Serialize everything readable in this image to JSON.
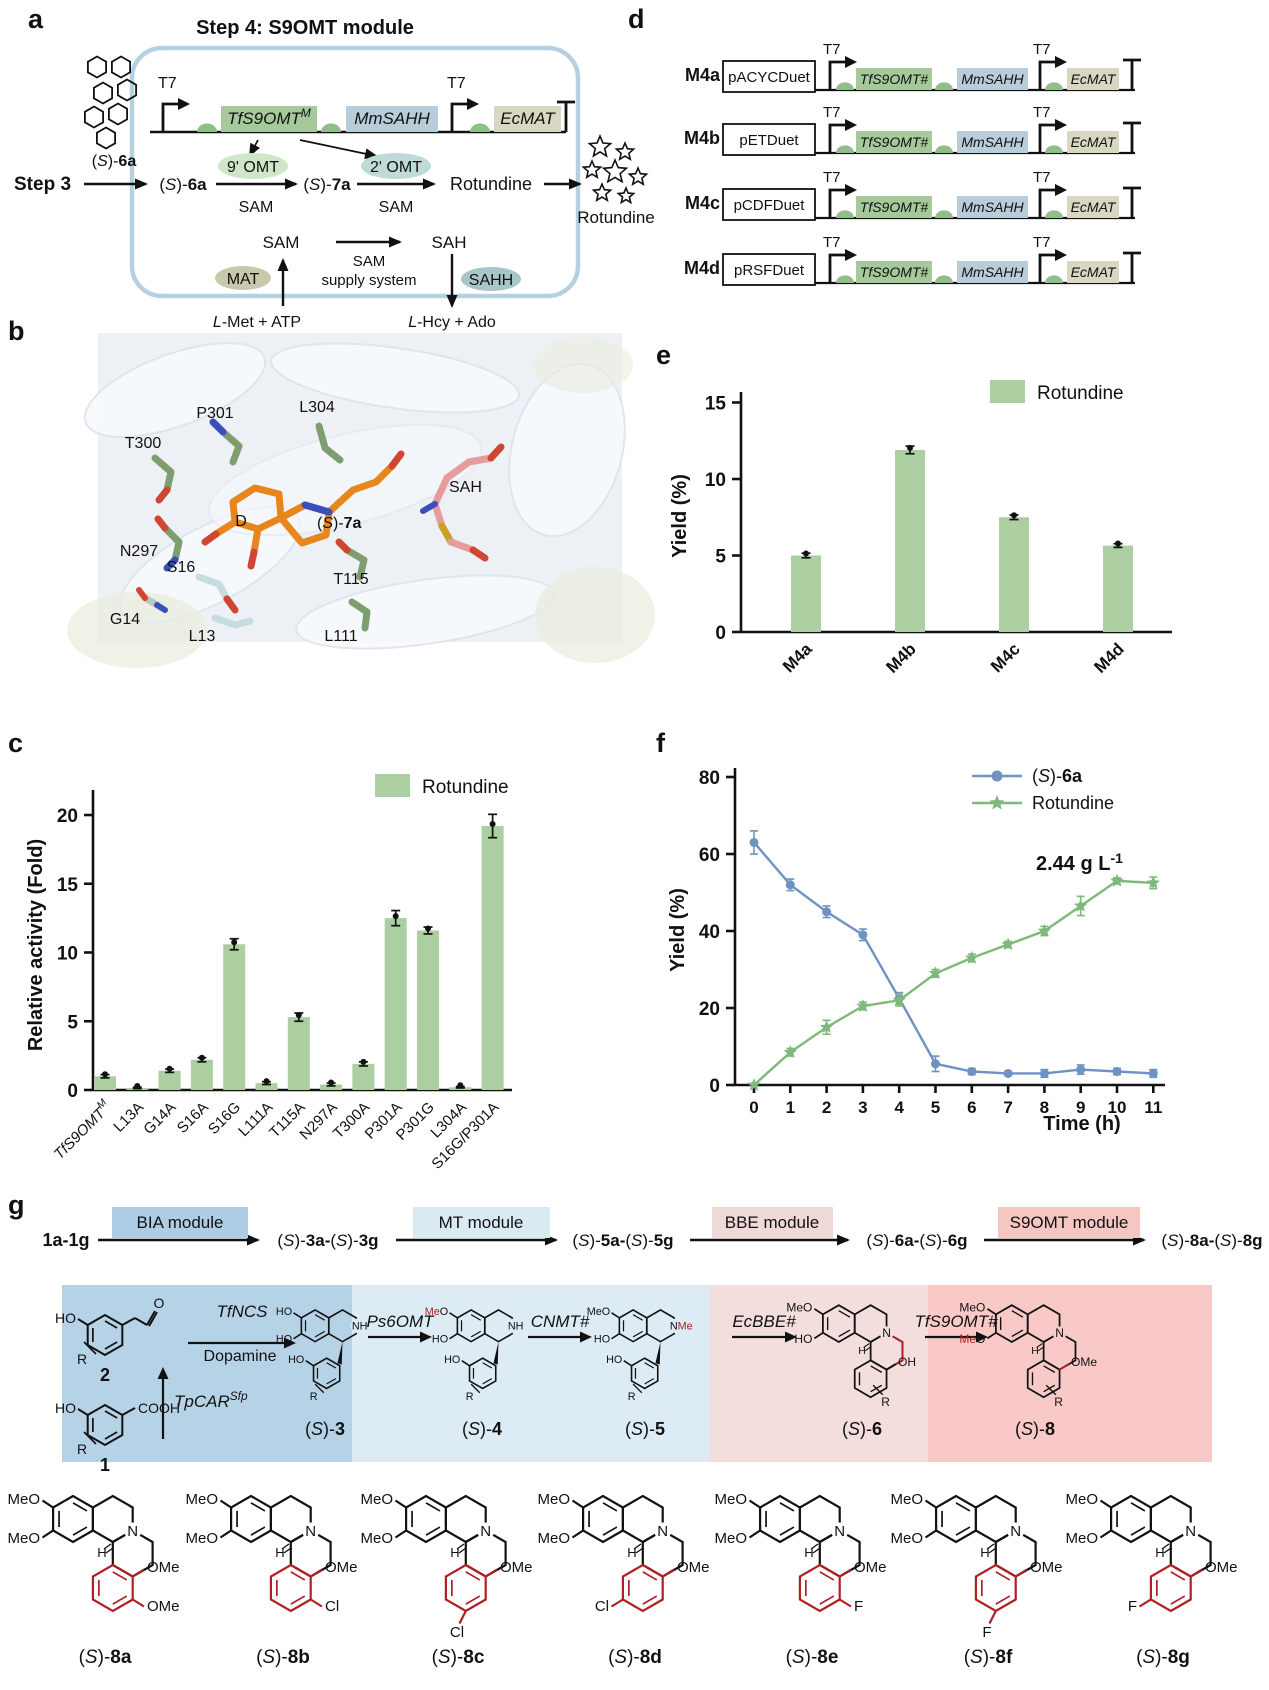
{
  "figure": {
    "panel_labels": {
      "a": "a",
      "b": "b",
      "c": "c",
      "d": "d",
      "e": "e",
      "f": "f",
      "g": "g"
    }
  },
  "colors": {
    "module_border": "#b5d1e1",
    "gene_green": "#a5c99b",
    "gene_blue": "#b9ccd9",
    "gene_tan": "#d8d7c1",
    "rbs_green": "#8fbe89",
    "ellipse_9omt": "#cfe6c8",
    "ellipse_2omt": "#bedbd8",
    "ellipse_mat": "#c8c8ac",
    "ellipse_sahh": "#a8c6c9",
    "bar_fill": "#abcfa0",
    "line_blue": "#6e92c2",
    "line_green": "#7db97b",
    "enzyme_orange": "#d2622a",
    "substituent_red": "#b01f24",
    "flow_bia": "#aecde5",
    "flow_mt": "#d9eaf3",
    "flow_bbe": "#efd9d7",
    "flow_s9omt": "#f6c6c3",
    "band_bia": "#b6d2e7",
    "band_mt": "#dcebf4",
    "band_bbe": "#f3dedd",
    "band_s9omt": "#f9c9c7",
    "protein_bg": "#edf1f6",
    "ligand_orange": "#e8861e",
    "sah_pink": "#e69c9c",
    "stick_green": "#7f9e70",
    "stick_cyan": "#c4dde0"
  },
  "panel_a": {
    "title": "Step 4: S9OMT module",
    "t7": "T7",
    "gene1": "TfS9OMT^M",
    "gene2": "MmSAHH",
    "gene3": "EcMAT",
    "step3": "Step 3",
    "substrate": "(S)-6a",
    "enzyme1": "9' OMT",
    "enzyme2": "2' OMT",
    "sam1": "SAM",
    "sam2": "SAM",
    "intermediate": "(S)-7a",
    "product": "Rotundine",
    "product_out": "Rotundine",
    "sam3": "SAM",
    "sah": "SAH",
    "supply_line1": "SAM",
    "supply_line2": "supply system",
    "mat": "MAT",
    "sahh": "SAHH",
    "lmet": "L-Met + ATP",
    "lhcy": "L-Hcy + Ado"
  },
  "panel_b": {
    "p301": "P301",
    "l304": "L304",
    "t300": "T300",
    "n297": "N297",
    "s16": "S16",
    "g14": "G14",
    "l13": "L13",
    "t115": "T115",
    "l111": "L111",
    "sah": "SAH",
    "site_label": "D",
    "ligand": "(S)-7a"
  },
  "panel_d": {
    "t7": "T7",
    "gene1": "TfS9OMT#",
    "gene2": "MmSAHH",
    "gene3": "EcMAT",
    "rows": [
      {
        "name": "M4a",
        "plasmid": "pACYCDuet"
      },
      {
        "name": "M4b",
        "plasmid": "pETDuet"
      },
      {
        "name": "M4c",
        "plasmid": "pCDFDuet"
      },
      {
        "name": "M4d",
        "plasmid": "pRSFDuet"
      }
    ]
  },
  "chart_data": [
    {
      "id": "panel_c",
      "type": "bar",
      "ylabel": "Relative activity (Fold)",
      "legend": "Rotundine",
      "ylim": [
        0,
        22
      ],
      "yticks": [
        0,
        5,
        10,
        15,
        20
      ],
      "categories": [
        "TfS9OMT^M",
        "L13A",
        "G14A",
        "S16A",
        "S16G",
        "L111A",
        "T115A",
        "N297A",
        "T300A",
        "P301A",
        "P301G",
        "L304A",
        "S16G/P301A"
      ],
      "values": [
        1.0,
        0.15,
        1.4,
        2.2,
        10.6,
        0.5,
        5.3,
        0.4,
        1.9,
        12.5,
        11.6,
        0.2,
        19.2
      ],
      "errors": [
        0.12,
        0.05,
        0.12,
        0.15,
        0.4,
        0.1,
        0.3,
        0.1,
        0.15,
        0.55,
        0.25,
        0.05,
        0.85
      ]
    },
    {
      "id": "panel_e",
      "type": "bar",
      "ylabel": "Yield (%)",
      "legend": "Rotundine",
      "ylim": [
        0,
        15
      ],
      "yticks": [
        0,
        5,
        10,
        15
      ],
      "categories": [
        "M4a",
        "M4b",
        "M4c",
        "M4d"
      ],
      "values": [
        5.0,
        11.9,
        7.5,
        5.65
      ],
      "errors": [
        0.15,
        0.25,
        0.15,
        0.12
      ]
    },
    {
      "id": "panel_f",
      "type": "line",
      "ylabel": "Yield (%)",
      "xlabel": "Time (h)",
      "ylim": [
        0,
        80
      ],
      "yticks": [
        0,
        20,
        40,
        60,
        80
      ],
      "x": [
        0,
        1,
        2,
        3,
        4,
        5,
        6,
        7,
        8,
        9,
        10,
        11
      ],
      "annotation": "2.44 g L^-1",
      "series": [
        {
          "name": "(S)-6a",
          "marker": "circle",
          "color": "#6e92c2",
          "values": [
            63,
            52,
            45,
            39,
            22.5,
            5.5,
            3.5,
            3,
            3,
            4,
            3.5,
            3
          ],
          "errors": [
            3,
            1.5,
            1.5,
            1.5,
            1.5,
            2,
            0.8,
            0.5,
            1,
            1.2,
            0.8,
            1
          ]
        },
        {
          "name": "Rotundine",
          "marker": "star",
          "color": "#7db97b",
          "values": [
            0,
            8.5,
            15,
            20.5,
            22,
            29,
            33,
            36.5,
            40,
            46.5,
            53,
            52.5
          ],
          "errors": [
            0,
            1,
            1.8,
            1,
            1.5,
            1,
            1,
            0.8,
            1.2,
            2.5,
            0.8,
            1.5
          ]
        }
      ]
    }
  ],
  "panel_g": {
    "flow": {
      "start": "1a-1g",
      "steps": [
        {
          "module": "BIA module",
          "product": "(S)-3a-(S)-3g"
        },
        {
          "module": "MT module",
          "product": "(S)-5a-(S)-5g"
        },
        {
          "module": "BBE module",
          "product": "(S)-6a-(S)-6g"
        },
        {
          "module": "S9OMT module",
          "product": "(S)-8a-(S)-8g"
        }
      ]
    },
    "enzymes": {
      "tfncs": "TfNCS",
      "dopamine": "Dopamine",
      "tpcar": "TpCAR^Sfp",
      "ps6omt": "Ps6OMT",
      "cnmt": "CNMT#",
      "ecbbe": "EcBBE#",
      "tfs9omt": "TfS9OMT#"
    },
    "pathway_compounds": {
      "c2": {
        "name": "2",
        "ho": "HO",
        "r": "R",
        "o": "O"
      },
      "c1": {
        "name": "1",
        "ho": "HO",
        "r": "R",
        "cooh": "COOH"
      },
      "s3": {
        "name": "(S)-3",
        "a1": "HO",
        "a2": "HO",
        "amine": "NH",
        "e1": "HO",
        "r": "R"
      },
      "s4": {
        "name": "(S)-4",
        "a1": "MeO",
        "a1_red": "me",
        "a2": "HO",
        "amine": "NH",
        "e1": "HO",
        "r": "R"
      },
      "s5": {
        "name": "(S)-5",
        "a1": "MeO",
        "a2": "HO",
        "amine": "NMe",
        "amine_red": "me",
        "e1": "HO",
        "r": "R"
      },
      "s6": {
        "name": "(S)-6",
        "red_bridge": true,
        "r": "R",
        "subs": [
          {
            "t": "MeO",
            "pos": "a1"
          },
          {
            "t": "HO",
            "pos": "a2"
          },
          {
            "t": "OH",
            "pos": "d1"
          }
        ]
      },
      "s8": {
        "name": "(S)-8",
        "r": "R",
        "subs": [
          {
            "t": "MeO",
            "pos": "a1"
          },
          {
            "t": "MeO",
            "pos": "a2",
            "red": "me"
          },
          {
            "t": "OMe",
            "pos": "d1",
            "red": "all"
          }
        ]
      }
    },
    "products": [
      {
        "name": "(S)-8a",
        "subs": [
          {
            "t": "MeO",
            "pos": "a1"
          },
          {
            "t": "MeO",
            "pos": "a2"
          },
          {
            "t": "OMe",
            "pos": "d1",
            "red": "all"
          },
          {
            "t": "OMe",
            "pos": "d2",
            "red": "all"
          }
        ]
      },
      {
        "name": "(S)-8b",
        "subs": [
          {
            "t": "MeO",
            "pos": "a1"
          },
          {
            "t": "MeO",
            "pos": "a2"
          },
          {
            "t": "OMe",
            "pos": "d1",
            "red": "all"
          },
          {
            "t": "Cl",
            "pos": "d2",
            "red": "all"
          }
        ]
      },
      {
        "name": "(S)-8c",
        "subs": [
          {
            "t": "MeO",
            "pos": "a1"
          },
          {
            "t": "MeO",
            "pos": "a2"
          },
          {
            "t": "OMe",
            "pos": "d1",
            "red": "all"
          },
          {
            "t": "Cl",
            "pos": "db",
            "red": "all"
          }
        ]
      },
      {
        "name": "(S)-8d",
        "subs": [
          {
            "t": "MeO",
            "pos": "a1"
          },
          {
            "t": "MeO",
            "pos": "a2"
          },
          {
            "t": "OMe",
            "pos": "d1",
            "red": "all"
          },
          {
            "t": "Cl",
            "pos": "dl",
            "red": "all"
          }
        ]
      },
      {
        "name": "(S)-8e",
        "subs": [
          {
            "t": "MeO",
            "pos": "a1"
          },
          {
            "t": "MeO",
            "pos": "a2"
          },
          {
            "t": "OMe",
            "pos": "d1",
            "red": "all"
          },
          {
            "t": "F",
            "pos": "d2",
            "red": "all"
          }
        ]
      },
      {
        "name": "(S)-8f",
        "subs": [
          {
            "t": "MeO",
            "pos": "a1"
          },
          {
            "t": "MeO",
            "pos": "a2"
          },
          {
            "t": "OMe",
            "pos": "d1",
            "red": "all"
          },
          {
            "t": "F",
            "pos": "db",
            "red": "all"
          }
        ]
      },
      {
        "name": "(S)-8g",
        "subs": [
          {
            "t": "MeO",
            "pos": "a1"
          },
          {
            "t": "MeO",
            "pos": "a2"
          },
          {
            "t": "OMe",
            "pos": "d1",
            "red": "all"
          },
          {
            "t": "F",
            "pos": "dl",
            "red": "all"
          }
        ]
      }
    ]
  }
}
